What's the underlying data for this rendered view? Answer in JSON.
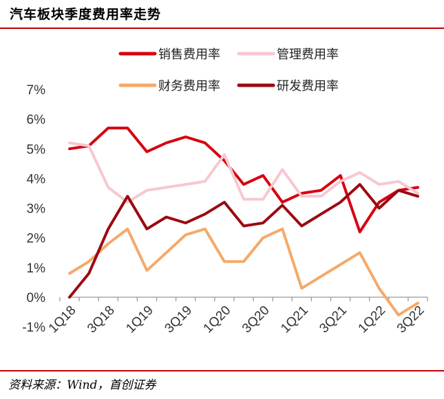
{
  "title": "汽车板块季度费用率走势",
  "source": "资料来源：Wind，首创证券",
  "chart_data": {
    "type": "line",
    "x": [
      "1Q18",
      "2Q18",
      "3Q18",
      "4Q18",
      "1Q19",
      "2Q19",
      "3Q19",
      "4Q19",
      "1Q20",
      "2Q20",
      "3Q20",
      "4Q20",
      "1Q21",
      "2Q21",
      "3Q21",
      "4Q21",
      "1Q22",
      "2Q22",
      "3Q22"
    ],
    "x_tick_labels": [
      "1Q18",
      "3Q18",
      "1Q19",
      "3Q19",
      "1Q20",
      "3Q20",
      "1Q21",
      "3Q21",
      "1Q22",
      "3Q22"
    ],
    "y_tick_labels": [
      "-1%",
      "0%",
      "1%",
      "2%",
      "3%",
      "4%",
      "5%",
      "6%",
      "7%"
    ],
    "ylim": [
      -1,
      7
    ],
    "y_unit": "%",
    "legend_position": "top",
    "series": [
      {
        "name": "销售费用率",
        "color": "#d7000f",
        "values": [
          5.0,
          5.1,
          5.7,
          5.7,
          4.9,
          5.2,
          5.4,
          5.2,
          4.6,
          3.8,
          4.1,
          3.2,
          3.5,
          3.6,
          4.1,
          2.2,
          3.2,
          3.6,
          3.7
        ]
      },
      {
        "name": "管理费用率",
        "color": "#f7c7cf",
        "values": [
          5.2,
          5.1,
          3.7,
          3.2,
          3.6,
          3.7,
          3.8,
          3.9,
          4.8,
          3.3,
          3.3,
          4.3,
          3.4,
          3.4,
          3.9,
          4.2,
          3.8,
          3.9,
          3.5
        ]
      },
      {
        "name": "财务费用率",
        "color": "#f4a96a",
        "values": [
          0.8,
          1.2,
          1.8,
          2.3,
          0.9,
          1.5,
          2.1,
          2.3,
          1.2,
          1.2,
          2.0,
          2.3,
          0.3,
          0.7,
          1.1,
          1.5,
          0.3,
          -0.6,
          -0.2
        ]
      },
      {
        "name": "研发费用率",
        "color": "#9b0a12",
        "values": [
          0.0,
          0.8,
          2.3,
          3.4,
          2.3,
          2.7,
          2.5,
          2.8,
          3.2,
          2.4,
          2.5,
          3.1,
          2.4,
          2.8,
          3.2,
          3.8,
          3.0,
          3.6,
          3.4
        ]
      }
    ]
  }
}
